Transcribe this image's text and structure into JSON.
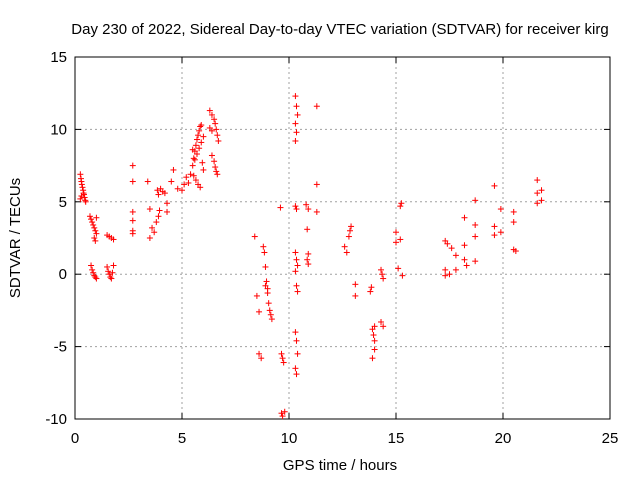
{
  "chart_data": {
    "type": "scatter",
    "title": "Day 230 of 2022, Sidereal Day-to-day VTEC variation (SDTVAR) for receiver kirg",
    "xlabel": "GPS time / hours",
    "ylabel": "SDTVAR / TECUs",
    "xlim": [
      0,
      25
    ],
    "ylim": [
      -10,
      15
    ],
    "x_ticks": [
      0,
      5,
      10,
      15,
      20,
      25
    ],
    "y_ticks": [
      -10,
      -5,
      0,
      5,
      10,
      15
    ],
    "x_tick_labels": [
      "0",
      "5",
      "10",
      "15",
      "20",
      "25"
    ],
    "y_tick_labels": [
      "-10",
      "-5",
      "0",
      "5",
      "10",
      "15"
    ],
    "grid": true,
    "marker": "+",
    "marker_color": "#ff0000",
    "series": [
      {
        "name": "SDTVAR",
        "points": [
          [
            0.25,
            6.9
          ],
          [
            0.28,
            6.6
          ],
          [
            0.3,
            6.4
          ],
          [
            0.32,
            6.2
          ],
          [
            0.35,
            6.0
          ],
          [
            0.38,
            5.8
          ],
          [
            0.4,
            5.6
          ],
          [
            0.42,
            5.5
          ],
          [
            0.45,
            5.3
          ],
          [
            0.48,
            5.1
          ],
          [
            0.5,
            5.0
          ],
          [
            0.3,
            5.4
          ],
          [
            0.25,
            5.2
          ],
          [
            0.7,
            4.0
          ],
          [
            0.75,
            3.8
          ],
          [
            0.8,
            3.6
          ],
          [
            0.85,
            3.4
          ],
          [
            0.9,
            3.2
          ],
          [
            0.95,
            3.0
          ],
          [
            1.0,
            2.8
          ],
          [
            0.9,
            2.5
          ],
          [
            0.95,
            2.3
          ],
          [
            1.0,
            3.9
          ],
          [
            0.75,
            0.6
          ],
          [
            0.8,
            0.3
          ],
          [
            0.85,
            0.1
          ],
          [
            0.9,
            -0.1
          ],
          [
            0.95,
            -0.2
          ],
          [
            1.0,
            -0.3
          ],
          [
            1.5,
            2.7
          ],
          [
            1.6,
            2.6
          ],
          [
            1.7,
            2.5
          ],
          [
            1.8,
            2.4
          ],
          [
            1.5,
            0.5
          ],
          [
            1.55,
            0.2
          ],
          [
            1.6,
            0.0
          ],
          [
            1.65,
            -0.2
          ],
          [
            1.7,
            -0.3
          ],
          [
            1.8,
            0.6
          ],
          [
            1.75,
            0.1
          ],
          [
            2.7,
            7.5
          ],
          [
            2.7,
            6.4
          ],
          [
            2.7,
            4.3
          ],
          [
            2.7,
            3.7
          ],
          [
            2.7,
            3.0
          ],
          [
            2.7,
            2.8
          ],
          [
            3.4,
            6.4
          ],
          [
            3.5,
            4.5
          ],
          [
            3.6,
            3.2
          ],
          [
            3.7,
            2.9
          ],
          [
            3.5,
            2.5
          ],
          [
            3.8,
            3.6
          ],
          [
            3.9,
            4.0
          ],
          [
            3.95,
            4.4
          ],
          [
            3.85,
            5.8
          ],
          [
            3.9,
            5.5
          ],
          [
            4.0,
            5.9
          ],
          [
            4.1,
            5.7
          ],
          [
            4.2,
            5.6
          ],
          [
            4.3,
            4.9
          ],
          [
            4.3,
            4.3
          ],
          [
            4.5,
            6.4
          ],
          [
            4.6,
            7.2
          ],
          [
            4.8,
            5.9
          ],
          [
            5.0,
            5.8
          ],
          [
            5.1,
            6.2
          ],
          [
            5.2,
            6.7
          ],
          [
            5.3,
            6.3
          ],
          [
            5.4,
            6.9
          ],
          [
            5.5,
            7.5
          ],
          [
            5.55,
            8.0
          ],
          [
            5.6,
            8.5
          ],
          [
            5.65,
            8.9
          ],
          [
            5.7,
            9.3
          ],
          [
            5.75,
            9.6
          ],
          [
            5.8,
            9.9
          ],
          [
            5.85,
            10.2
          ],
          [
            5.9,
            10.3
          ],
          [
            5.95,
            7.7
          ],
          [
            6.0,
            7.2
          ],
          [
            5.5,
            8.6
          ],
          [
            5.6,
            7.9
          ],
          [
            5.7,
            8.3
          ],
          [
            5.8,
            8.7
          ],
          [
            5.9,
            9.1
          ],
          [
            6.0,
            9.5
          ],
          [
            5.55,
            6.8
          ],
          [
            5.65,
            6.5
          ],
          [
            5.75,
            6.2
          ],
          [
            5.85,
            6.0
          ],
          [
            6.3,
            11.3
          ],
          [
            6.4,
            11.0
          ],
          [
            6.5,
            10.7
          ],
          [
            6.55,
            10.4
          ],
          [
            6.6,
            10.0
          ],
          [
            6.65,
            9.6
          ],
          [
            6.7,
            9.2
          ],
          [
            6.4,
            8.2
          ],
          [
            6.5,
            7.8
          ],
          [
            6.55,
            7.4
          ],
          [
            6.6,
            7.1
          ],
          [
            6.65,
            6.9
          ],
          [
            6.4,
            9.9
          ],
          [
            6.3,
            10.1
          ],
          [
            8.4,
            2.6
          ],
          [
            8.5,
            -1.5
          ],
          [
            8.6,
            -2.6
          ],
          [
            8.6,
            -5.5
          ],
          [
            8.7,
            -5.8
          ],
          [
            8.8,
            1.9
          ],
          [
            8.85,
            1.5
          ],
          [
            8.9,
            0.5
          ],
          [
            8.95,
            -0.5
          ],
          [
            9.0,
            -1.0
          ],
          [
            9.05,
            -2.0
          ],
          [
            9.1,
            -2.5
          ],
          [
            9.15,
            -2.8
          ],
          [
            9.2,
            -3.1
          ],
          [
            8.9,
            -0.8
          ],
          [
            9.0,
            -1.3
          ],
          [
            9.6,
            4.6
          ],
          [
            9.65,
            -5.5
          ],
          [
            9.7,
            -5.8
          ],
          [
            9.75,
            -6.1
          ],
          [
            9.65,
            -9.6
          ],
          [
            9.7,
            -9.8
          ],
          [
            9.8,
            -9.5
          ],
          [
            10.3,
            12.3
          ],
          [
            10.35,
            11.6
          ],
          [
            10.4,
            11.0
          ],
          [
            10.3,
            10.4
          ],
          [
            10.35,
            9.8
          ],
          [
            10.3,
            9.2
          ],
          [
            10.3,
            4.7
          ],
          [
            10.35,
            4.5
          ],
          [
            10.3,
            1.5
          ],
          [
            10.35,
            1.0
          ],
          [
            10.4,
            0.6
          ],
          [
            10.3,
            0.2
          ],
          [
            10.35,
            -0.8
          ],
          [
            10.4,
            -1.2
          ],
          [
            10.3,
            -4.0
          ],
          [
            10.35,
            -4.6
          ],
          [
            10.4,
            -5.5
          ],
          [
            10.3,
            -6.5
          ],
          [
            10.35,
            -6.9
          ],
          [
            10.8,
            4.8
          ],
          [
            10.9,
            4.5
          ],
          [
            10.85,
            3.1
          ],
          [
            10.9,
            1.4
          ],
          [
            10.85,
            1.0
          ],
          [
            10.9,
            0.7
          ],
          [
            11.3,
            11.6
          ],
          [
            11.3,
            6.2
          ],
          [
            11.3,
            4.3
          ],
          [
            12.6,
            1.9
          ],
          [
            12.7,
            1.5
          ],
          [
            12.8,
            2.6
          ],
          [
            12.85,
            3.0
          ],
          [
            12.9,
            3.3
          ],
          [
            13.1,
            -0.7
          ],
          [
            13.1,
            -1.5
          ],
          [
            13.8,
            -1.2
          ],
          [
            13.85,
            -0.9
          ],
          [
            13.9,
            -3.8
          ],
          [
            13.95,
            -4.2
          ],
          [
            14.0,
            -4.6
          ],
          [
            14.0,
            -5.2
          ],
          [
            13.9,
            -5.8
          ],
          [
            14.0,
            -3.6
          ],
          [
            14.3,
            0.3
          ],
          [
            14.35,
            0.0
          ],
          [
            14.4,
            -0.3
          ],
          [
            14.3,
            -3.3
          ],
          [
            14.4,
            -3.6
          ],
          [
            15.0,
            2.9
          ],
          [
            15.0,
            2.2
          ],
          [
            15.1,
            0.4
          ],
          [
            15.2,
            2.4
          ],
          [
            15.2,
            4.7
          ],
          [
            15.3,
            -0.1
          ],
          [
            15.25,
            4.9
          ],
          [
            17.3,
            2.3
          ],
          [
            17.4,
            2.1
          ],
          [
            17.3,
            0.3
          ],
          [
            17.3,
            -0.1
          ],
          [
            17.5,
            0.0
          ],
          [
            17.6,
            1.8
          ],
          [
            17.8,
            1.3
          ],
          [
            17.8,
            0.3
          ],
          [
            18.2,
            3.9
          ],
          [
            18.2,
            2.0
          ],
          [
            18.2,
            1.0
          ],
          [
            18.3,
            0.6
          ],
          [
            18.7,
            5.1
          ],
          [
            18.7,
            3.4
          ],
          [
            18.7,
            2.6
          ],
          [
            18.7,
            0.9
          ],
          [
            19.6,
            6.1
          ],
          [
            19.6,
            3.3
          ],
          [
            19.6,
            2.7
          ],
          [
            19.9,
            4.5
          ],
          [
            19.9,
            2.9
          ],
          [
            20.5,
            4.3
          ],
          [
            20.5,
            3.6
          ],
          [
            20.5,
            1.7
          ],
          [
            20.6,
            1.6
          ],
          [
            21.6,
            6.5
          ],
          [
            21.6,
            5.6
          ],
          [
            21.6,
            4.9
          ],
          [
            21.8,
            5.8
          ],
          [
            21.8,
            5.1
          ]
        ]
      }
    ]
  }
}
